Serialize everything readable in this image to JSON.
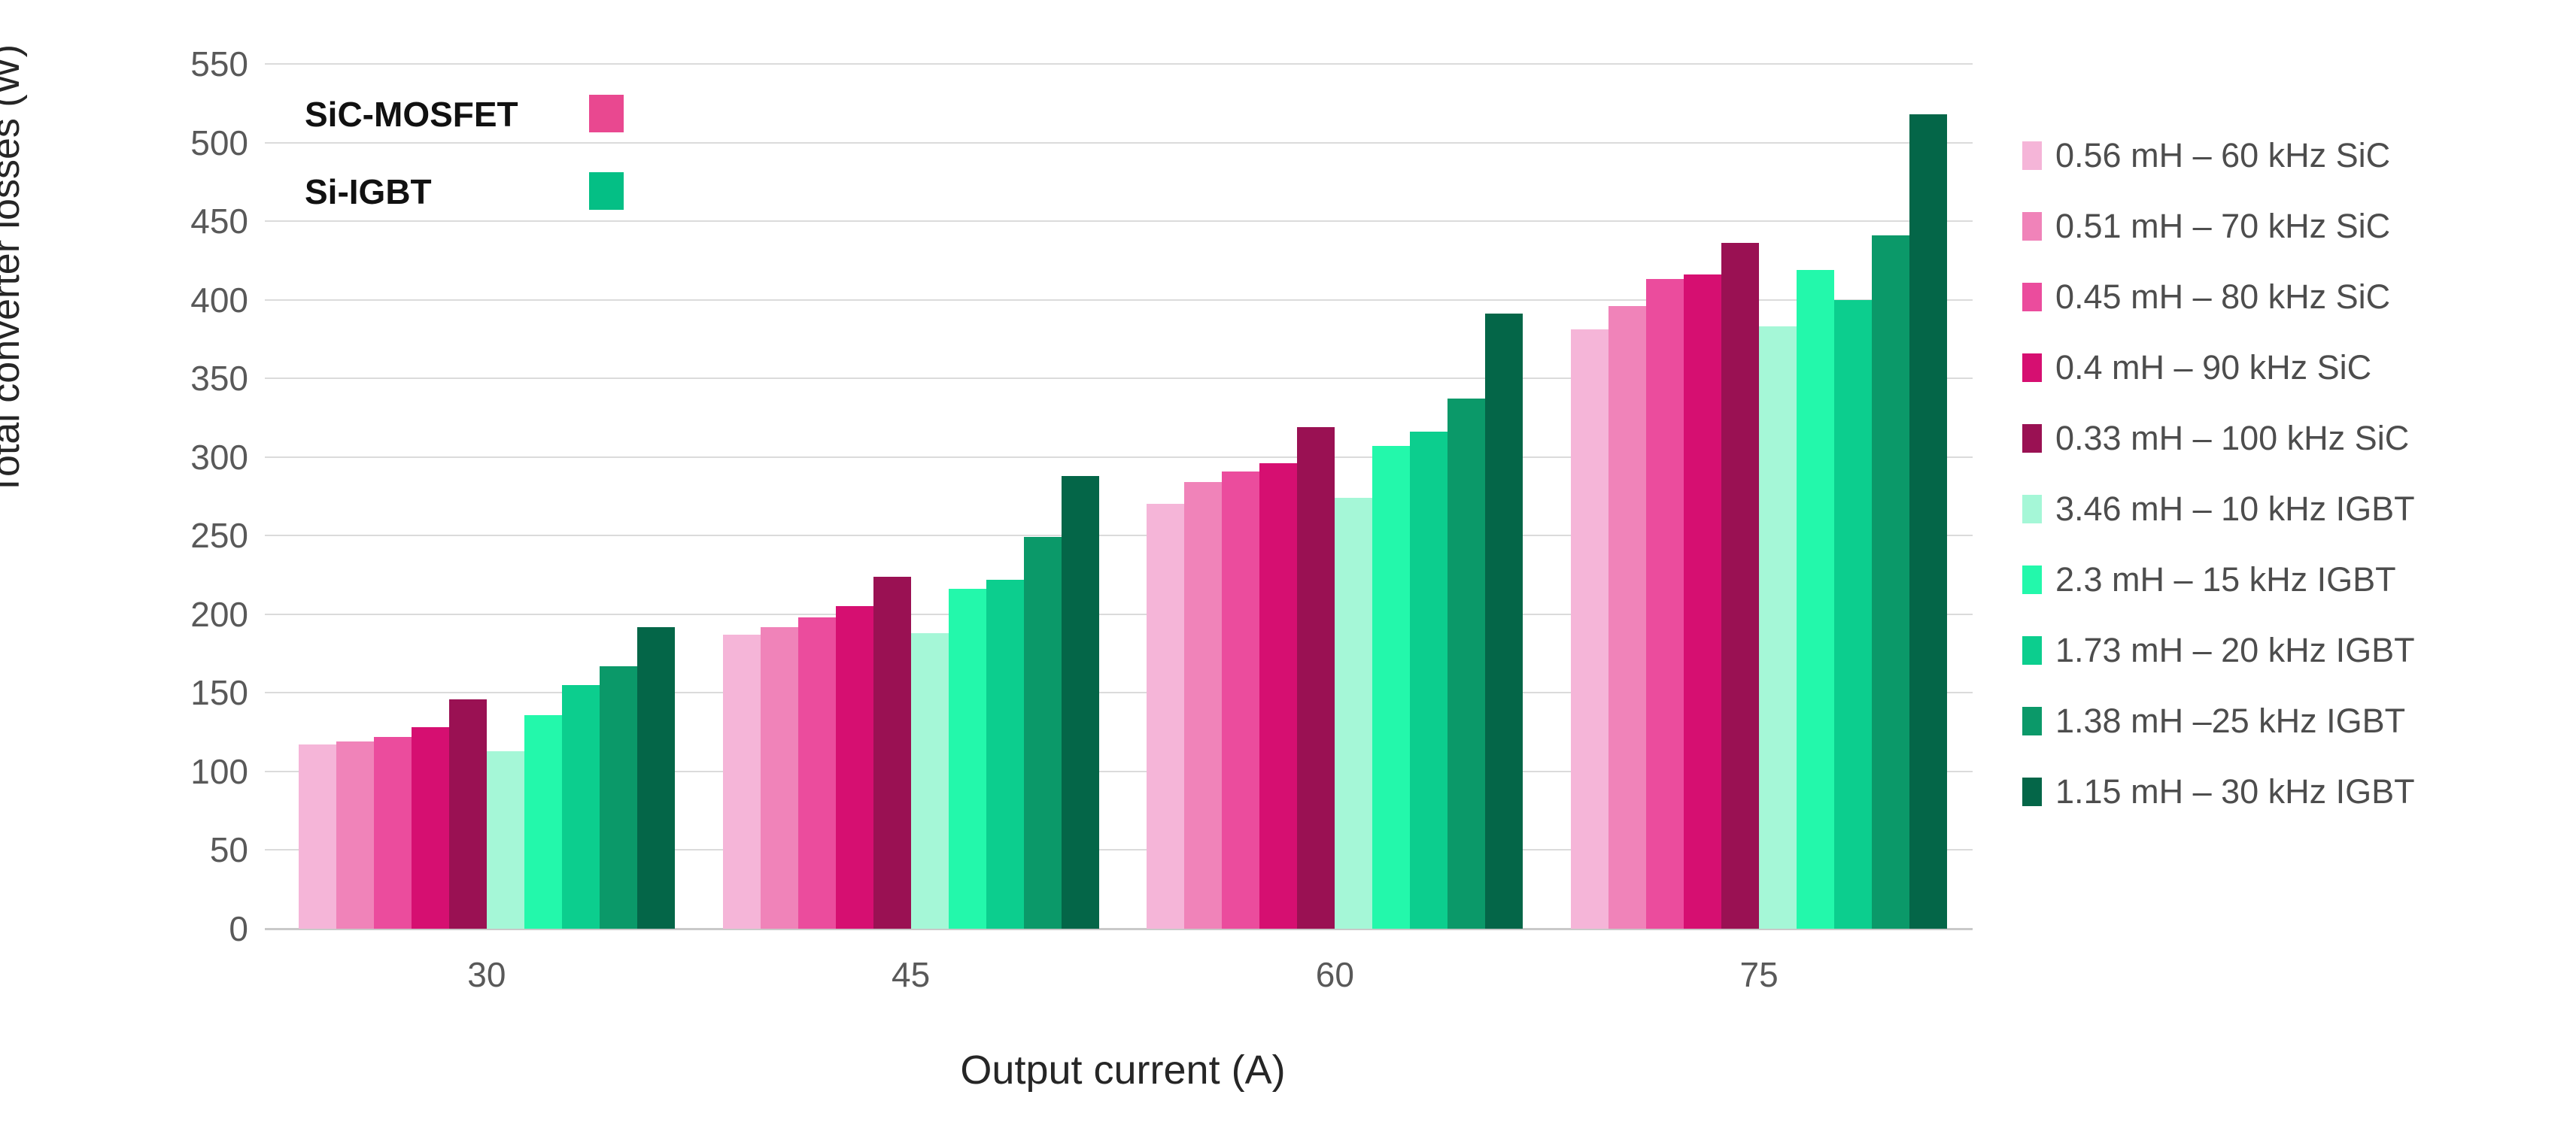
{
  "y_axis": {
    "title": "Total converter losses (W)",
    "tick_labels": [
      "0",
      "50",
      "100",
      "150",
      "200",
      "250",
      "300",
      "350",
      "400",
      "450",
      "500",
      "550"
    ],
    "min": 0,
    "max": 550,
    "step": 50
  },
  "x_axis": {
    "title": "Output current (A)",
    "tick_labels": [
      "30",
      "45",
      "60",
      "75"
    ]
  },
  "inner_legend": [
    {
      "label": "SiC-MOSFET",
      "color": "#E94890"
    },
    {
      "label": "Si-IGBT",
      "color": "#04BF85"
    }
  ],
  "chart_data": {
    "type": "bar",
    "title": "",
    "xlabel": "Output current (A)",
    "ylabel": "Total converter losses (W)",
    "categories": [
      "30",
      "45",
      "60",
      "75"
    ],
    "ylim": [
      0,
      550
    ],
    "grid": "horizontal",
    "legend_position": "right",
    "series": [
      {
        "name": "0.56 mH – 60 kHz SiC",
        "group": "SiC-MOSFET",
        "color": "#F5B5D8",
        "values": [
          117,
          187,
          270,
          381
        ]
      },
      {
        "name": "0.51 mH – 70 kHz SiC",
        "group": "SiC-MOSFET",
        "color": "#F083B9",
        "values": [
          119,
          192,
          284,
          396
        ]
      },
      {
        "name": "0.45 mH – 80 kHz SiC",
        "group": "SiC-MOSFET",
        "color": "#EB4C9D",
        "values": [
          122,
          198,
          291,
          413
        ]
      },
      {
        "name": "0.4 mH – 90 kHz SiC",
        "group": "SiC-MOSFET",
        "color": "#D60F71",
        "values": [
          128,
          205,
          296,
          416
        ]
      },
      {
        "name": "0.33 mH – 100 kHz SiC",
        "group": "SiC-MOSFET",
        "color": "#9A1153",
        "values": [
          146,
          224,
          319,
          436
        ]
      },
      {
        "name": "3.46 mH – 10 kHz IGBT",
        "group": "Si-IGBT",
        "color": "#A5F7D7",
        "values": [
          113,
          188,
          274,
          383
        ]
      },
      {
        "name": "2.3 mH – 15 kHz IGBT",
        "group": "Si-IGBT",
        "color": "#23F8AB",
        "values": [
          136,
          216,
          307,
          419
        ]
      },
      {
        "name": "1.73 mH – 20 kHz IGBT",
        "group": "Si-IGBT",
        "color": "#0CCE8E",
        "values": [
          155,
          222,
          316,
          400
        ]
      },
      {
        "name": "1.38 mH –25 kHz IGBT",
        "group": "Si-IGBT",
        "color": "#0B9969",
        "values": [
          167,
          249,
          337,
          441
        ]
      },
      {
        "name": "1.15 mH – 30 kHz IGBT",
        "group": "Si-IGBT",
        "color": "#046648",
        "values": [
          192,
          288,
          391,
          518
        ]
      }
    ]
  }
}
